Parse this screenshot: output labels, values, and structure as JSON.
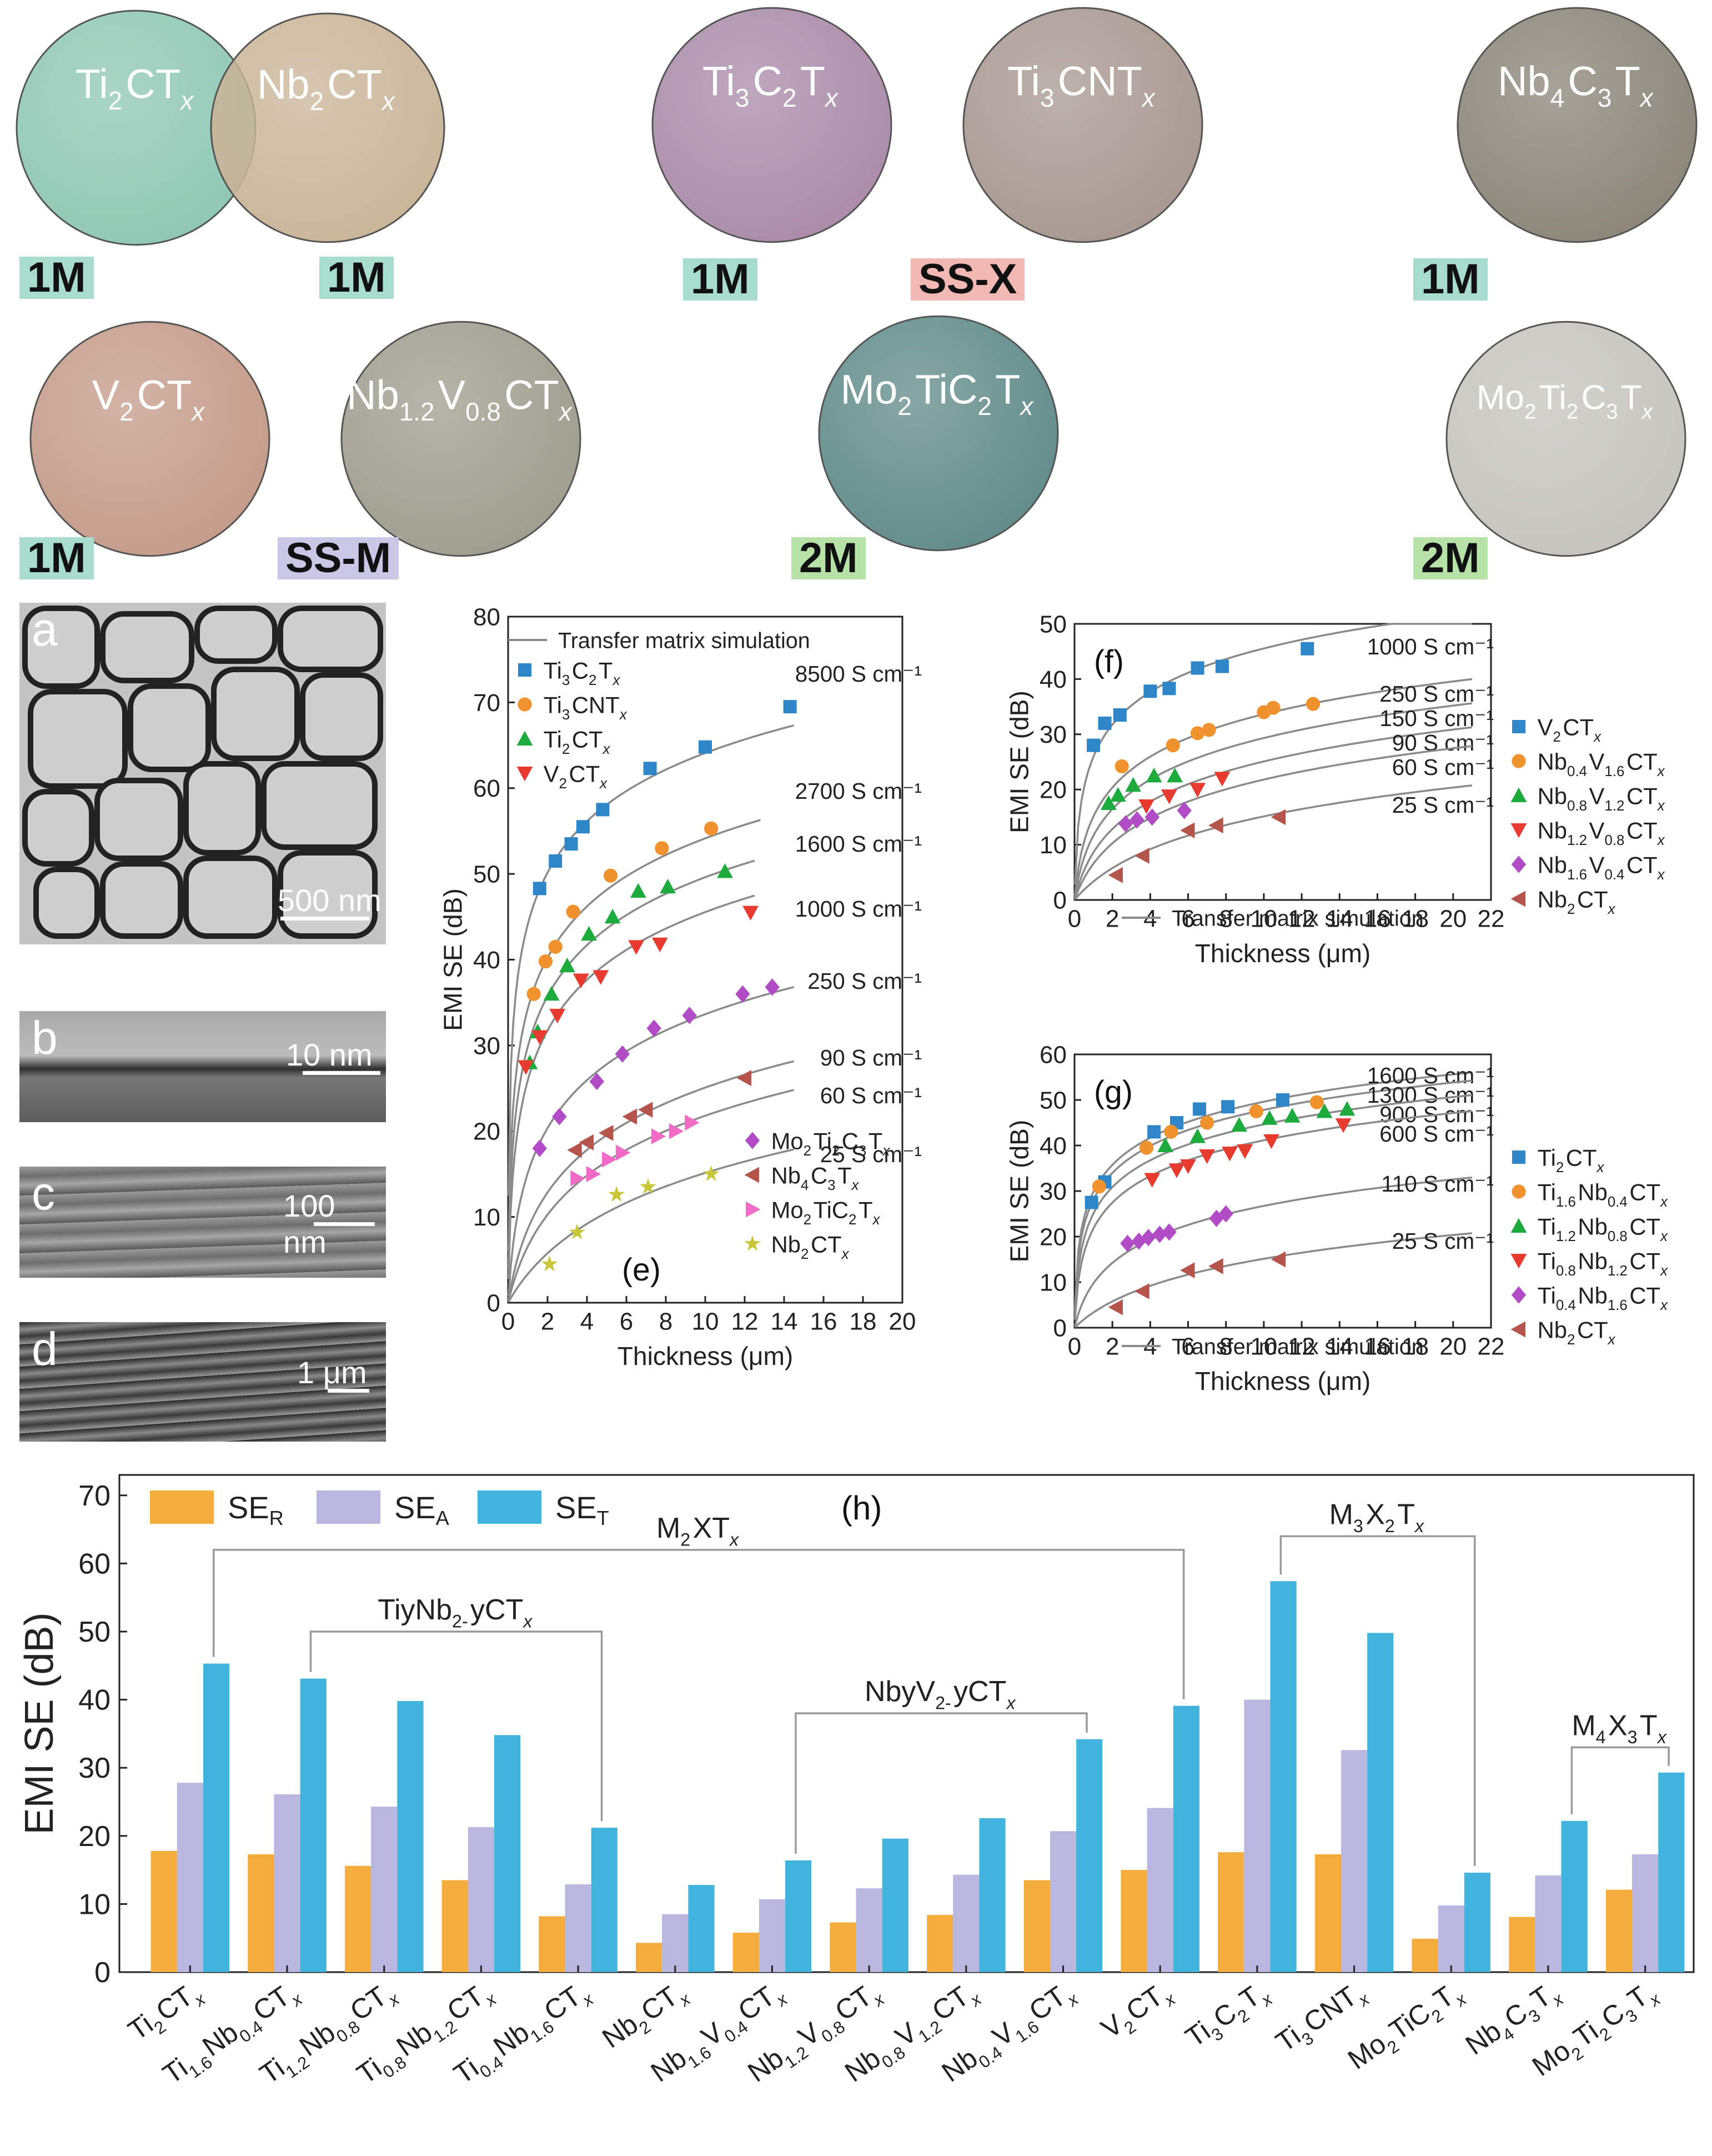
{
  "films": [
    {
      "label_html": "Ti<sub>2</sub>CT<i>x</i>",
      "label_parts": [
        "Ti",
        "2",
        "CT",
        "x"
      ],
      "badge": "1M",
      "badge_color": "#a8dccf",
      "color": "#8ec7b3"
    },
    {
      "label_parts": [
        "Nb",
        "2",
        "CT",
        "x"
      ],
      "badge": "1M",
      "badge_color": "#a8dccf",
      "color": "#c9b497"
    },
    {
      "label_parts": [
        "Ti",
        "3",
        "C",
        "2",
        "T",
        "x"
      ],
      "badge": "1M",
      "badge_color": "#a8dccf",
      "color": "#a98aa8"
    },
    {
      "label_parts": [
        "Ti",
        "3",
        "CNT",
        "x"
      ],
      "badge": "SS-X",
      "badge_color": "#f2b8b4",
      "color": "#a79790"
    },
    {
      "label_parts": [
        "Nb",
        "4",
        "C",
        "3",
        "T",
        "x"
      ],
      "badge": "1M",
      "badge_color": "#a8dccf",
      "color": "#8a8478"
    },
    {
      "label_parts": [
        "V",
        "2",
        "CT",
        "x"
      ],
      "badge": "1M",
      "badge_color": "#a8dccf",
      "color": "#c49a88"
    },
    {
      "label_parts": [
        "Nb",
        "1.2",
        "V",
        "0.8",
        "CT",
        "x"
      ],
      "badge": "SS-M",
      "badge_color": "#c9c6e6",
      "color": "#9e9c8e"
    },
    {
      "label_parts": [
        "Mo",
        "2",
        "TiC",
        "2",
        "T",
        "x"
      ],
      "badge": "2M",
      "badge_color": "#b7e3a8",
      "color": "#5f8a88"
    },
    {
      "label_parts": [
        "Mo",
        "2",
        "Ti",
        "2",
        "C",
        "3",
        "T",
        "x"
      ],
      "badge": "2M",
      "badge_color": "#b7e3a8",
      "color": "#c4c3bd"
    }
  ],
  "micrographs": [
    {
      "letter": "a",
      "scale": "500 nm"
    },
    {
      "letter": "b",
      "scale": "10 nm"
    },
    {
      "letter": "c",
      "scale": "100 nm"
    },
    {
      "letter": "d",
      "scale": "1 μm"
    }
  ],
  "chart_data": [
    {
      "panel": "e",
      "type": "scatter",
      "xlabel": "Thickness (μm)",
      "ylabel": "EMI SE (dB)",
      "xlim": [
        0,
        20
      ],
      "ylim": [
        0,
        80
      ],
      "xticks": [
        0,
        2,
        4,
        6,
        8,
        10,
        12,
        14,
        16,
        18,
        20
      ],
      "yticks": [
        0,
        10,
        20,
        30,
        40,
        50,
        60,
        70,
        80
      ],
      "line_legend": "Transfer matrix simulation",
      "curves": [
        {
          "label": "8500 S cm⁻¹",
          "sigma": 8500
        },
        {
          "label": "2700 S cm⁻¹",
          "sigma": 2700
        },
        {
          "label": "1600 S cm⁻¹",
          "sigma": 1600
        },
        {
          "label": "1000 S cm⁻¹",
          "sigma": 1000
        },
        {
          "label": "250 S cm⁻¹",
          "sigma": 250
        },
        {
          "label": "90 S cm⁻¹",
          "sigma": 90
        },
        {
          "label": "60 S cm⁻¹",
          "sigma": 60
        },
        {
          "label": "25 S cm⁻¹",
          "sigma": 25
        }
      ],
      "series": [
        {
          "name": "Ti3C2Tx",
          "marker": "square",
          "color": "#2e86c8",
          "x": [
            1.6,
            2.4,
            3.2,
            3.8,
            4.8,
            7.2,
            10,
            14.3
          ],
          "y": [
            48.3,
            51.5,
            53.5,
            55.5,
            57.5,
            62.3,
            64.8,
            69.5
          ]
        },
        {
          "name": "Ti3CNTx",
          "marker": "circle",
          "color": "#f0922e",
          "x": [
            1.3,
            1.9,
            2.4,
            3.3,
            5.2,
            7.8,
            10.3
          ],
          "y": [
            36,
            39.8,
            41.5,
            45.6,
            49.8,
            53,
            55.3
          ]
        },
        {
          "name": "Ti2CTx",
          "marker": "triangle",
          "color": "#1dab3e",
          "x": [
            1.1,
            1.5,
            2.2,
            3.0,
            4.1,
            5.3,
            6.6,
            8.1,
            11.0
          ],
          "y": [
            28,
            31.6,
            36,
            39.3,
            43,
            45,
            48,
            48.5,
            50.3
          ]
        },
        {
          "name": "V2CTx",
          "marker": "triangle-down",
          "color": "#e63b2e",
          "x": [
            0.9,
            1.6,
            2.5,
            3.7,
            4.7,
            6.5,
            7.7,
            12.3
          ],
          "y": [
            27.5,
            31,
            33.5,
            37.6,
            38,
            41.5,
            41.8,
            45.5
          ]
        },
        {
          "name": "Mo2Ti2C3Tx",
          "marker": "diamond",
          "color": "#b14cc6",
          "x": [
            1.6,
            2.6,
            4.5,
            5.8,
            7.4,
            9.2,
            11.9,
            13.4
          ],
          "y": [
            18,
            21.7,
            25.8,
            29,
            32,
            33.5,
            36,
            36.8
          ]
        },
        {
          "name": "Nb4C3Tx",
          "marker": "triangle-left",
          "color": "#b5544a",
          "x": [
            3.4,
            4.0,
            5.0,
            6.2,
            7.0,
            12.0
          ],
          "y": [
            17.8,
            18.7,
            19.8,
            21.7,
            22.5,
            26.2
          ]
        },
        {
          "name": "Mo2TiC2Tx",
          "marker": "triangle-right",
          "color": "#f06ac6",
          "x": [
            3.5,
            4.3,
            5.1,
            5.8,
            7.6,
            8.5,
            9.3
          ],
          "y": [
            14.5,
            15,
            16.7,
            17.5,
            19.4,
            20,
            21
          ]
        },
        {
          "name": "Nb2CTx",
          "marker": "star",
          "color": "#c9c63a",
          "x": [
            2.1,
            3.5,
            5.5,
            7.1,
            10.3
          ],
          "y": [
            4.5,
            8.2,
            12.6,
            13.5,
            15
          ]
        }
      ]
    },
    {
      "panel": "f",
      "type": "scatter",
      "xlabel": "Thickness (μm)",
      "ylabel": "EMI SE (dB)",
      "xlim": [
        0,
        22
      ],
      "ylim": [
        0,
        50
      ],
      "xticks": [
        0,
        2,
        4,
        6,
        8,
        10,
        12,
        14,
        16,
        18,
        20,
        22
      ],
      "yticks": [
        0,
        10,
        20,
        30,
        40,
        50
      ],
      "line_legend": "Transfer matrix simulation",
      "curves": [
        {
          "label": "1000 S cm⁻¹",
          "sigma": 1000
        },
        {
          "label": "250 S cm⁻¹",
          "sigma": 250
        },
        {
          "label": "150 S cm⁻¹",
          "sigma": 150
        },
        {
          "label": "90 S cm⁻¹",
          "sigma": 90
        },
        {
          "label": "60 S cm⁻¹",
          "sigma": 60
        },
        {
          "label": "25 S cm⁻¹",
          "sigma": 25
        }
      ],
      "series": [
        {
          "name": "V2CTx",
          "marker": "square",
          "color": "#2e86c8",
          "x": [
            1.0,
            1.6,
            2.4,
            4.0,
            5.0,
            6.5,
            7.8,
            12.3
          ],
          "y": [
            28,
            32,
            33.5,
            37.8,
            38.3,
            42,
            42.3,
            45.5
          ]
        },
        {
          "name": "Nb0.4V1.6CTx",
          "marker": "circle",
          "color": "#f0922e",
          "x": [
            2.5,
            5.2,
            6.5,
            7.1,
            10,
            10.5,
            12.6
          ],
          "y": [
            24.2,
            28,
            30.2,
            30.8,
            34,
            34.8,
            35.5
          ]
        },
        {
          "name": "Nb0.8V1.2CTx",
          "marker": "triangle",
          "color": "#1dab3e",
          "x": [
            1.8,
            2.3,
            3.1,
            4.2,
            5.3
          ],
          "y": [
            17.5,
            19,
            20.8,
            22.5,
            22.5
          ]
        },
        {
          "name": "Nb1.2V0.8CTx",
          "marker": "triangle-down",
          "color": "#e63b2e",
          "x": [
            3.8,
            5.0,
            6.5,
            7.8
          ],
          "y": [
            17,
            18.8,
            20,
            22
          ]
        },
        {
          "name": "Nb1.6V0.4CTx",
          "marker": "diamond",
          "color": "#b14cc6",
          "x": [
            2.7,
            3.3,
            4.1,
            5.8
          ],
          "y": [
            13.8,
            14.5,
            15,
            16.2
          ]
        },
        {
          "name": "Nb2CTx",
          "marker": "triangle-left",
          "color": "#b5544a",
          "x": [
            2.2,
            3.6,
            6.0,
            7.5,
            10.8
          ],
          "y": [
            4.5,
            8.0,
            12.6,
            13.5,
            15
          ]
        }
      ]
    },
    {
      "panel": "g",
      "type": "scatter",
      "xlabel": "Thickness (μm)",
      "ylabel": "EMI SE (dB)",
      "xlim": [
        0,
        22
      ],
      "ylim": [
        0,
        60
      ],
      "xticks": [
        0,
        2,
        4,
        6,
        8,
        10,
        12,
        14,
        16,
        18,
        20,
        22
      ],
      "yticks": [
        0,
        10,
        20,
        30,
        40,
        50,
        60
      ],
      "line_legend": "Transfer matrix simulation",
      "curves": [
        {
          "label": "1600 S cm⁻¹",
          "sigma": 1600
        },
        {
          "label": "1300 S cm⁻¹",
          "sigma": 1300
        },
        {
          "label": "900 S cm⁻¹",
          "sigma": 900
        },
        {
          "label": "600 S cm⁻¹",
          "sigma": 600
        },
        {
          "label": "110 S cm⁻¹",
          "sigma": 110
        },
        {
          "label": "25 S cm⁻¹",
          "sigma": 25
        }
      ],
      "series": [
        {
          "name": "Ti2CTx",
          "marker": "square",
          "color": "#2e86c8",
          "x": [
            0.9,
            1.6,
            4.2,
            5.4,
            6.6,
            8.1,
            11.0
          ],
          "y": [
            27.5,
            32,
            43,
            45,
            48,
            48.5,
            50
          ]
        },
        {
          "name": "Ti1.6Nb0.4CTx",
          "marker": "circle",
          "color": "#f0922e",
          "x": [
            1.3,
            3.8,
            5.1,
            7.0,
            9.6,
            12.8
          ],
          "y": [
            31,
            39.5,
            43,
            45,
            47.5,
            49.5
          ]
        },
        {
          "name": "Ti1.2Nb0.8CTx",
          "marker": "triangle",
          "color": "#1dab3e",
          "x": [
            4.8,
            6.5,
            8.7,
            10.3,
            11.5,
            13.2,
            14.4
          ],
          "y": [
            40,
            42,
            44.5,
            46,
            46.5,
            47.5,
            48
          ]
        },
        {
          "name": "Ti0.8Nb1.2CTx",
          "marker": "triangle-down",
          "color": "#e63b2e",
          "x": [
            4.1,
            5.4,
            6.0,
            7.0,
            8.2,
            9.0,
            10.4,
            14.2
          ],
          "y": [
            32.5,
            34.6,
            35.5,
            37.7,
            38.3,
            38.8,
            41,
            44.5
          ]
        },
        {
          "name": "Ti0.4Nb1.6CTx",
          "marker": "diamond",
          "color": "#b14cc6",
          "x": [
            2.8,
            3.4,
            3.9,
            4.5,
            5.0,
            7.5,
            8.0
          ],
          "y": [
            18.5,
            19,
            19.8,
            20.5,
            21,
            24,
            25
          ]
        },
        {
          "name": "Nb2CTx",
          "marker": "triangle-left",
          "color": "#b5544a",
          "x": [
            2.2,
            3.6,
            6.0,
            7.5,
            10.8
          ],
          "y": [
            4.5,
            8.0,
            12.6,
            13.5,
            15
          ]
        }
      ]
    },
    {
      "panel": "h",
      "type": "bar",
      "ylabel": "EMI SE (dB)",
      "ylim": [
        0,
        73
      ],
      "yticks": [
        0,
        10,
        20,
        30,
        40,
        50,
        60,
        70
      ],
      "categories": [
        "Ti2CTx",
        "Ti1.6Nb0.4CTx",
        "Ti1.2Nb0.8CTx",
        "Ti0.8Nb1.2CTx",
        "Ti0.4Nb1.6CTx",
        "Nb2CTx",
        "Nb1.6V0.4CTx",
        "Nb1.2V0.8CTx",
        "Nb0.8V1.2CTx",
        "Nb0.4V1.6CTx",
        "V2CTx",
        "Ti3C2Tx",
        "Ti3CNTx",
        "Mo2TiC2Tx",
        "Nb4C3Tx",
        "Mo2Ti2C3Tx"
      ],
      "series": [
        {
          "name": "SE_R",
          "color": "#f4ad3d",
          "values": [
            17.8,
            17.3,
            15.6,
            13.5,
            8.2,
            4.3,
            5.8,
            7.3,
            8.4,
            13.5,
            15.0,
            17.6,
            17.3,
            4.9,
            8.1,
            12.1
          ]
        },
        {
          "name": "SE_A",
          "color": "#b9b7e0",
          "values": [
            27.8,
            26.1,
            24.3,
            21.3,
            12.9,
            8.5,
            10.7,
            12.3,
            14.3,
            20.7,
            24.1,
            40.0,
            32.6,
            9.8,
            14.2,
            17.3
          ]
        },
        {
          "name": "SE_T",
          "color": "#42b3dd",
          "values": [
            45.3,
            43.1,
            39.8,
            34.8,
            21.2,
            12.8,
            16.4,
            19.6,
            22.6,
            34.2,
            39.1,
            57.4,
            49.8,
            14.6,
            22.2,
            29.3
          ]
        }
      ],
      "groups": [
        {
          "label": "M2XTx",
          "from": 0,
          "to": 10,
          "y": 62
        },
        {
          "label": "TiyNb2-yCTx",
          "from": 1,
          "to": 4,
          "y": 50
        },
        {
          "label": "NbyV2-yCTx",
          "from": 6,
          "to": 9,
          "y": 38
        },
        {
          "label": "M3X2Tx",
          "from": 11,
          "to": 13,
          "y": 64
        },
        {
          "label": "M4X3Tx",
          "from": 14,
          "to": 15,
          "y": 33
        }
      ]
    }
  ]
}
